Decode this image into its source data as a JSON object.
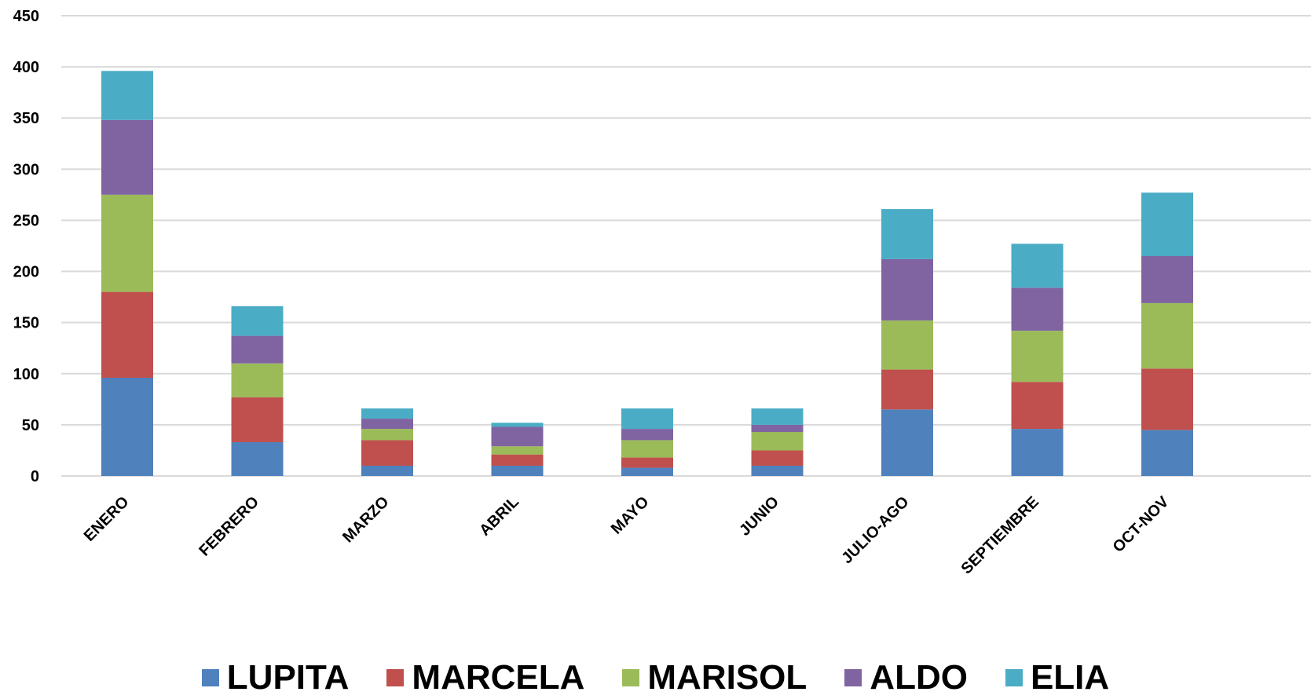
{
  "chart_data": {
    "type": "bar",
    "stacked": true,
    "categories": [
      "ENERO",
      "FEBRERO",
      "MARZO",
      "ABRIL",
      "MAYO",
      "JUNIO",
      "JULIO-AGO",
      "SEPTIEMBRE",
      "OCT-NOV"
    ],
    "series": [
      {
        "name": "LUPITA",
        "color": "#4F81BD",
        "values": [
          96,
          33,
          10,
          10,
          8,
          10,
          65,
          46,
          45
        ]
      },
      {
        "name": "MARCELA",
        "color": "#C0504D",
        "values": [
          84,
          44,
          25,
          11,
          10,
          15,
          39,
          46,
          60
        ]
      },
      {
        "name": "MARISOL",
        "color": "#9BBB59",
        "values": [
          95,
          33,
          11,
          8,
          17,
          18,
          48,
          50,
          64
        ]
      },
      {
        "name": "ALDO",
        "color": "#8064A2",
        "values": [
          73,
          27,
          10,
          19,
          11,
          7,
          60,
          42,
          46
        ]
      },
      {
        "name": "ELIA",
        "color": "#4BACC6",
        "values": [
          48,
          29,
          10,
          4,
          20,
          16,
          49,
          43,
          62
        ]
      }
    ],
    "ylim": [
      0,
      450
    ],
    "yticks": [
      "0",
      "50",
      "100",
      "150",
      "200",
      "250",
      "300",
      "350",
      "400",
      "450"
    ],
    "grid": true,
    "legend_position": "bottom"
  }
}
